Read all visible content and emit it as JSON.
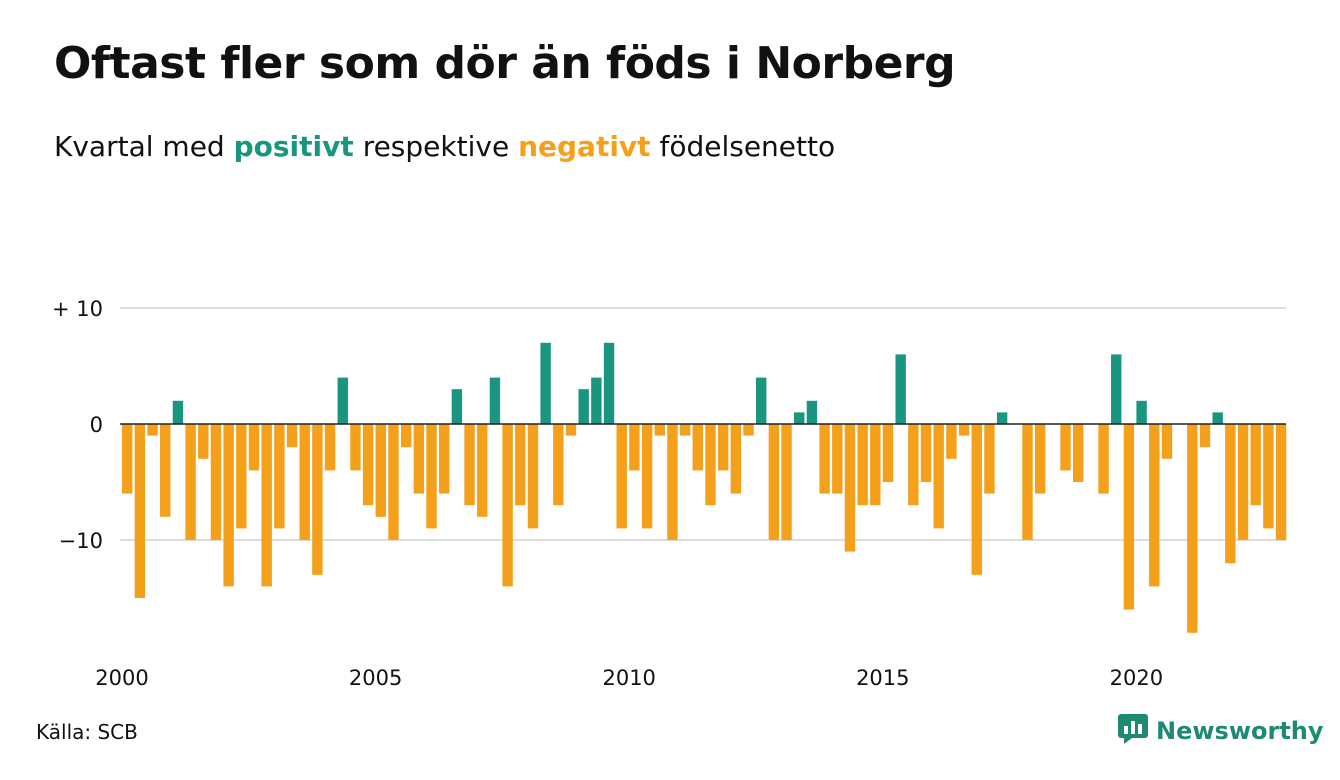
{
  "header": {
    "title": "Oftast fler som dör än föds i Norberg",
    "subtitle_prefix": "Kvartal med",
    "subtitle_positive": "positivt",
    "subtitle_middle": "respektive",
    "subtitle_negative": "negativt",
    "subtitle_suffix": "födelsenetto"
  },
  "footer": {
    "source": "Källa: SCB",
    "brand": "Newsworthy",
    "brand_icon": "bar-chart-logo-icon"
  },
  "colors": {
    "positive": "#1a9580",
    "negative": "#f5a01a",
    "grid": "#dddddd",
    "axis": "#222222",
    "brand": "#1f8a74"
  },
  "chart_data": {
    "type": "bar",
    "title": "Oftast fler som dör än föds i Norberg",
    "subtitle": "Kvartal med positivt respektive negativt födelsenetto",
    "xlabel": "",
    "ylabel": "",
    "ylim": [
      -18,
      10
    ],
    "yticks": [
      {
        "value": 10,
        "label": "+ 10"
      },
      {
        "value": 0,
        "label": "0"
      },
      {
        "value": -10,
        "label": "−10"
      }
    ],
    "xticks": [
      "2000",
      "2005",
      "2010",
      "2015",
      "2020"
    ],
    "grid": true,
    "legend": "none",
    "start": "2000-Q1",
    "period": "quarter",
    "values": [
      -6,
      -15,
      -1,
      -8,
      2,
      -10,
      -3,
      -10,
      -14,
      -9,
      -4,
      -14,
      -9,
      -2,
      -10,
      -13,
      -4,
      4,
      -4,
      -7,
      -8,
      -10,
      -2,
      -6,
      -9,
      -6,
      3,
      -7,
      -8,
      4,
      -14,
      -7,
      -9,
      7,
      -7,
      -1,
      3,
      4,
      7,
      -9,
      -4,
      -9,
      -1,
      -10,
      -1,
      -4,
      -7,
      -4,
      -6,
      -1,
      4,
      -10,
      -10,
      1,
      2,
      -6,
      -6,
      -11,
      -7,
      -7,
      -5,
      6,
      -7,
      -5,
      -9,
      -3,
      -1,
      -13,
      -6,
      1,
      0,
      -10,
      -6,
      0,
      -4,
      -5,
      0,
      -6,
      6,
      -16,
      2,
      -14,
      -3,
      0,
      -18,
      -2,
      1,
      -12,
      -10,
      -7,
      -9,
      -10
    ]
  }
}
